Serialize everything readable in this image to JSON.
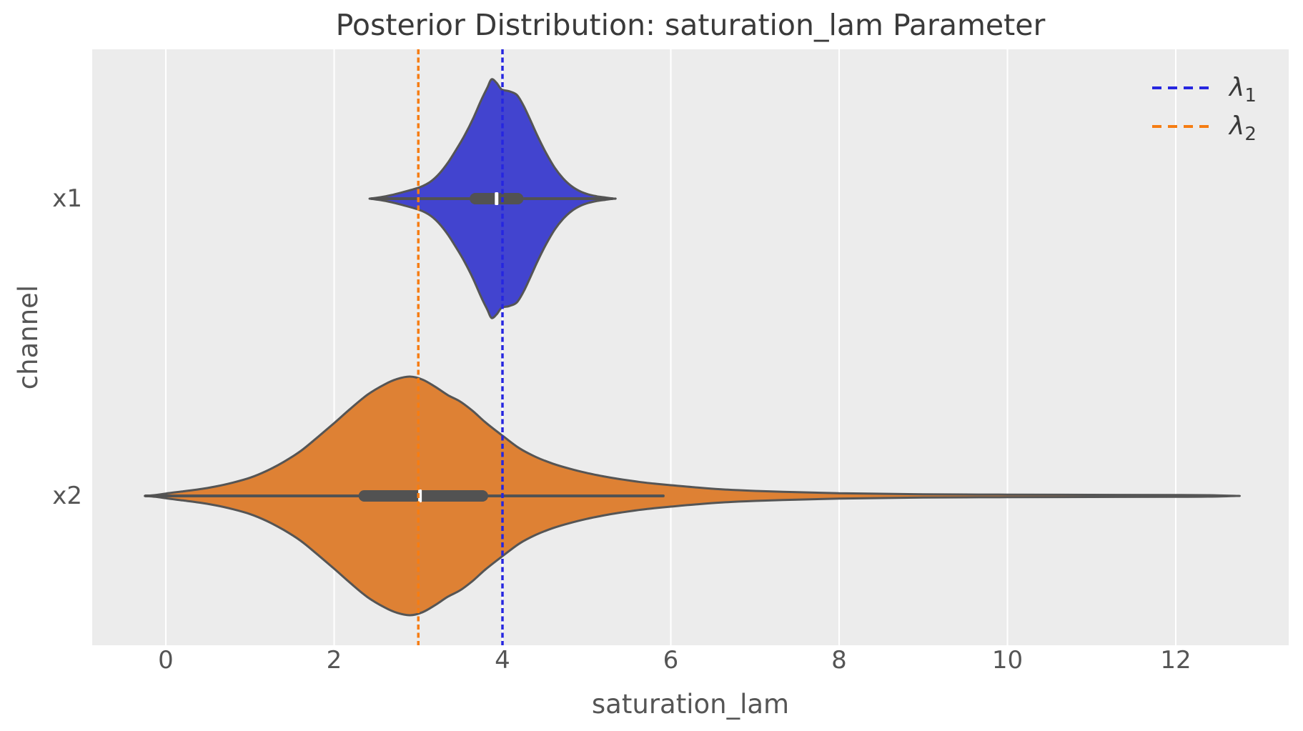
{
  "title": "Posterior Distribution: saturation_lam Parameter",
  "x_axis": {
    "label": "saturation_lam",
    "ticks": [
      {
        "label": "0",
        "value": 0
      },
      {
        "label": "2",
        "value": 2
      },
      {
        "label": "4",
        "value": 4
      },
      {
        "label": "6",
        "value": 6
      },
      {
        "label": "8",
        "value": 8
      },
      {
        "label": "10",
        "value": 10
      },
      {
        "label": "12",
        "value": 12
      }
    ]
  },
  "y_axis": {
    "label": "channel",
    "categories": [
      "x1",
      "x2"
    ]
  },
  "legend": {
    "entries": [
      {
        "symbol": "λ",
        "subscript": "1",
        "color": "#2626e0"
      },
      {
        "symbol": "λ",
        "subscript": "2",
        "color": "#f67d13"
      }
    ]
  },
  "colors": {
    "figure_bg": "#ffffff",
    "axes_bg": "#ececec",
    "grid": "#ffffff",
    "violin_outline": "#555555",
    "inner_box": "#525252",
    "median_tick": "#ffffff",
    "lambda1_line": "#2626e0",
    "lambda2_line": "#f67d13",
    "x1_fill": "#4244cf",
    "x2_fill": "#de8134"
  },
  "chart_data": {
    "type": "violin",
    "orientation": "horizontal",
    "title": "Posterior Distribution: saturation_lam Parameter",
    "xlabel": "saturation_lam",
    "ylabel": "channel",
    "xlim": [
      -0.9,
      13.4
    ],
    "grid": true,
    "legend_position": "upper right",
    "reference_lines": [
      {
        "name": "lambda_1",
        "x": 4,
        "style": "dashed",
        "color": "#2626e0"
      },
      {
        "name": "lambda_2",
        "x": 3,
        "style": "dashed",
        "color": "#f67d13"
      }
    ],
    "series": [
      {
        "channel": "x1",
        "fill": "#4244cf",
        "median": 3.93,
        "q1": 3.61,
        "q3": 4.25,
        "whisker_low": 2.45,
        "whisker_high": 5.3,
        "data_range": [
          2.42,
          5.33
        ],
        "density_profile": [
          [
            2.42,
            0
          ],
          [
            2.55,
            0.012
          ],
          [
            2.68,
            0.03
          ],
          [
            2.82,
            0.055
          ],
          [
            2.95,
            0.08
          ],
          [
            3.05,
            0.105
          ],
          [
            3.15,
            0.145
          ],
          [
            3.25,
            0.21
          ],
          [
            3.35,
            0.3
          ],
          [
            3.45,
            0.41
          ],
          [
            3.55,
            0.53
          ],
          [
            3.65,
            0.67
          ],
          [
            3.75,
            0.83
          ],
          [
            3.82,
            0.93
          ],
          [
            3.87,
            1.0
          ],
          [
            3.93,
            0.97
          ],
          [
            3.99,
            0.915
          ],
          [
            4.08,
            0.9
          ],
          [
            4.17,
            0.87
          ],
          [
            4.25,
            0.78
          ],
          [
            4.33,
            0.66
          ],
          [
            4.42,
            0.52
          ],
          [
            4.52,
            0.38
          ],
          [
            4.62,
            0.26
          ],
          [
            4.72,
            0.17
          ],
          [
            4.82,
            0.105
          ],
          [
            4.92,
            0.062
          ],
          [
            5.02,
            0.036
          ],
          [
            5.12,
            0.02
          ],
          [
            5.22,
            0.01
          ],
          [
            5.33,
            0
          ]
        ]
      },
      {
        "channel": "x2",
        "fill": "#de8134",
        "median": 3.02,
        "q1": 2.29,
        "q3": 3.83,
        "whisker_low": -0.24,
        "whisker_high": 5.91,
        "data_range": [
          -0.25,
          12.72
        ],
        "density_profile": [
          [
            -0.25,
            0
          ],
          [
            -0.12,
            0.008
          ],
          [
            0.0,
            0.02
          ],
          [
            0.2,
            0.038
          ],
          [
            0.4,
            0.056
          ],
          [
            0.6,
            0.08
          ],
          [
            0.8,
            0.112
          ],
          [
            1.0,
            0.152
          ],
          [
            1.2,
            0.21
          ],
          [
            1.4,
            0.285
          ],
          [
            1.6,
            0.375
          ],
          [
            1.8,
            0.49
          ],
          [
            2.0,
            0.61
          ],
          [
            2.2,
            0.735
          ],
          [
            2.4,
            0.85
          ],
          [
            2.6,
            0.935
          ],
          [
            2.75,
            0.98
          ],
          [
            2.9,
            1.0
          ],
          [
            3.05,
            0.975
          ],
          [
            3.2,
            0.915
          ],
          [
            3.35,
            0.845
          ],
          [
            3.5,
            0.79
          ],
          [
            3.65,
            0.71
          ],
          [
            3.8,
            0.615
          ],
          [
            4.0,
            0.505
          ],
          [
            4.2,
            0.4
          ],
          [
            4.4,
            0.325
          ],
          [
            4.6,
            0.27
          ],
          [
            4.8,
            0.228
          ],
          [
            5.0,
            0.193
          ],
          [
            5.2,
            0.164
          ],
          [
            5.4,
            0.14
          ],
          [
            5.6,
            0.12
          ],
          [
            5.8,
            0.103
          ],
          [
            6.0,
            0.09
          ],
          [
            6.3,
            0.071
          ],
          [
            6.6,
            0.055
          ],
          [
            7.0,
            0.042
          ],
          [
            7.5,
            0.031
          ],
          [
            8.0,
            0.023
          ],
          [
            8.5,
            0.018
          ],
          [
            9.0,
            0.014
          ],
          [
            9.5,
            0.012
          ],
          [
            10.0,
            0.011
          ],
          [
            11.0,
            0.009
          ],
          [
            12.0,
            0.008
          ],
          [
            12.4,
            0.006
          ],
          [
            12.72,
            0
          ]
        ]
      }
    ]
  }
}
